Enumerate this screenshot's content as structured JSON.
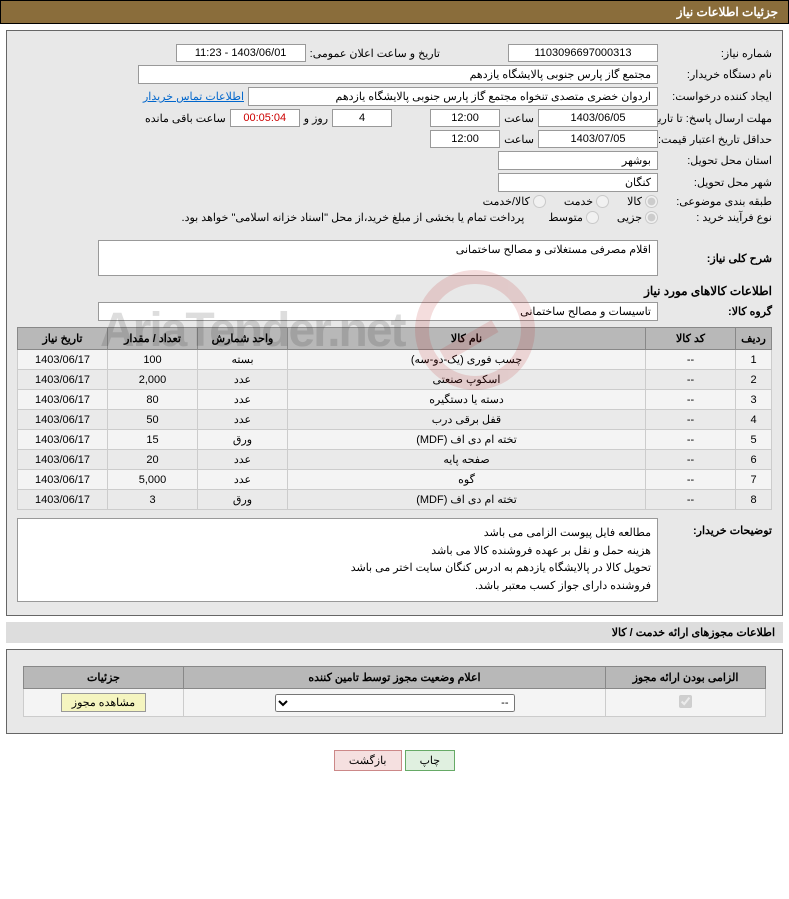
{
  "header_title": "جزئیات اطلاعات نیاز",
  "fields": {
    "need_no_label": "شماره نیاز:",
    "need_no": "1103096697000313",
    "announce_label": "تاریخ و ساعت اعلان عمومی:",
    "announce_val": "1403/06/01 - 11:23",
    "buyer_org_label": "نام دستگاه خریدار:",
    "buyer_org": "مجتمع گاز پارس جنوبی  پالایشگاه یازدهم",
    "requester_label": "ایجاد کننده درخواست:",
    "requester": "اردوان خضری متصدی تنخواه مجتمع گاز پارس جنوبی  پالایشگاه یازدهم",
    "contact_link": "اطلاعات تماس خریدار",
    "deadline_label": "مهلت ارسال پاسخ: تا تاریخ:",
    "deadline_date": "1403/06/05",
    "time_label": "ساعت",
    "deadline_time": "12:00",
    "days_word": "روز و",
    "days_val": "4",
    "countdown": "00:05:04",
    "remain_label": "ساعت باقی مانده",
    "price_valid_label": "حداقل تاریخ اعتبار قیمت: تا تاریخ:",
    "price_valid_date": "1403/07/05",
    "price_valid_time": "12:00",
    "province_label": "استان محل تحویل:",
    "province": "بوشهر",
    "city_label": "شهر محل تحویل:",
    "city": "کنگان",
    "category_label": "طبقه بندی موضوعی:",
    "cat_goods": "کالا",
    "cat_service": "خدمت",
    "cat_goods_service": "کالا/خدمت",
    "process_label": "نوع فرآیند خرید :",
    "proc_minor": "جزیی",
    "proc_medium": "متوسط",
    "proc_note": "پرداخت تمام یا بخشی از مبلغ خرید،از محل \"اسناد خزانه اسلامی\" خواهد بود.",
    "summary_label": "شرح کلی نیاز:",
    "summary": "اقلام مصرفی مستغلاتی و مصالح ساختمانی",
    "goods_info_title": "اطلاعات کالاهای مورد نیاز",
    "goods_group_label": "گروه کالا:",
    "goods_group": "تاسیسات و مصالح ساختمانی",
    "buyer_notes_label": "توضیحات خریدار:",
    "notes_l1": "مطالعه فایل پیوست الزامی می باشد",
    "notes_l2": "هزینه حمل و نقل بر عهده فروشنده کالا می باشد",
    "notes_l3": "تحویل کالا در پالایشگاه یازدهم به ادرس کنگان سایت اختر می باشد",
    "notes_l4": "فروشنده دارای جواز کسب معتبر باشد."
  },
  "table": {
    "headers": [
      "ردیف",
      "کد کالا",
      "نام کالا",
      "واحد شمارش",
      "تعداد / مقدار",
      "تاریخ نیاز"
    ],
    "rows": [
      [
        "1",
        "--",
        "چسب فوری (یک-دو-سه)",
        "بسته",
        "100",
        "1403/06/17"
      ],
      [
        "2",
        "--",
        "اسکوپ صنعتی",
        "عدد",
        "2,000",
        "1403/06/17"
      ],
      [
        "3",
        "--",
        "دسته یا دستگیره",
        "عدد",
        "80",
        "1403/06/17"
      ],
      [
        "4",
        "--",
        "قفل برقی درب",
        "عدد",
        "50",
        "1403/06/17"
      ],
      [
        "5",
        "--",
        "تخته ام دی اف (MDF)",
        "ورق",
        "15",
        "1403/06/17"
      ],
      [
        "6",
        "--",
        "صفحه پایه",
        "عدد",
        "20",
        "1403/06/17"
      ],
      [
        "7",
        "--",
        "گوه",
        "عدد",
        "5,000",
        "1403/06/17"
      ],
      [
        "8",
        "--",
        "تخته ام دی اف (MDF)",
        "ورق",
        "3",
        "1403/06/17"
      ]
    ]
  },
  "permits": {
    "section_title": "اطلاعات مجوزهای ارائه خدمت / کالا",
    "headers": [
      "الزامی بودن ارائه مجوز",
      "اعلام وضعیت مجوز توسط تامین کننده",
      "جزئیات"
    ],
    "combo_placeholder": "--",
    "view_btn": "مشاهده مجوز"
  },
  "buttons": {
    "print": "چاپ",
    "back": "بازگشت"
  },
  "colors": {
    "header_bg": "#8a6d3b",
    "panel_bg": "#e8e8e8",
    "th_bg": "#b8b8b8",
    "link": "#0066cc"
  }
}
